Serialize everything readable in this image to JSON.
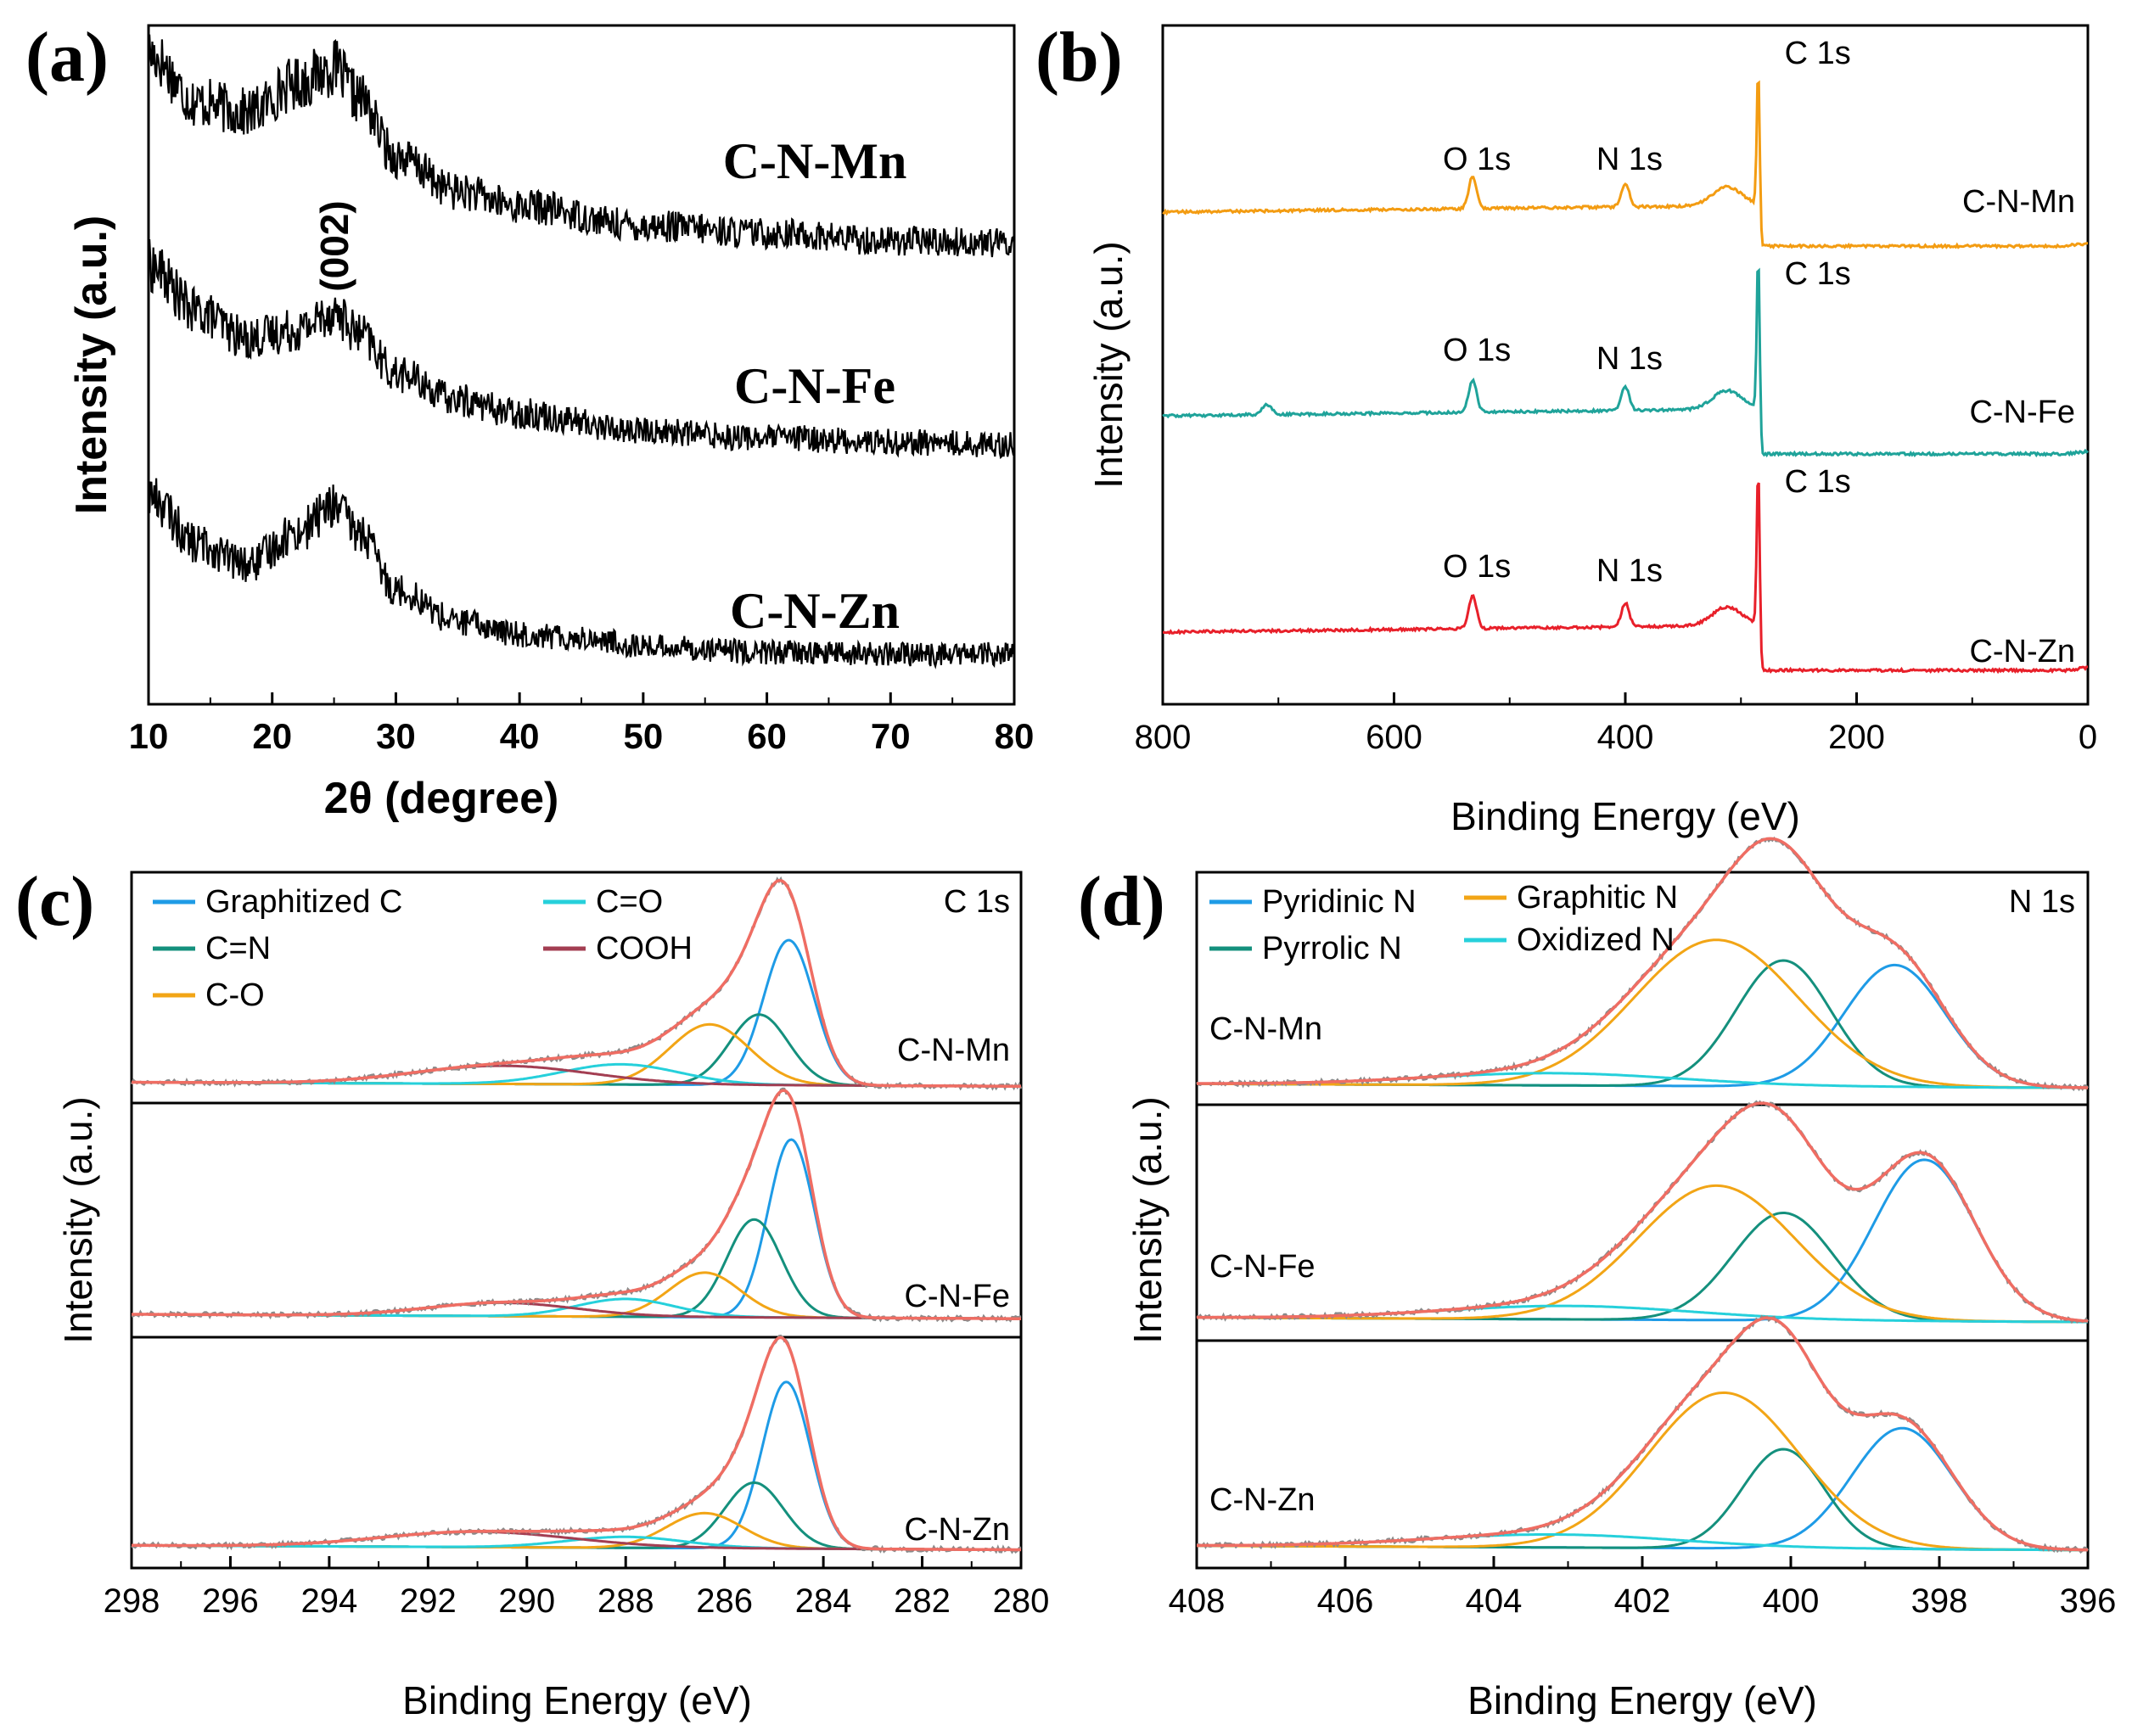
{
  "chart_data": [
    {
      "type": "line",
      "panel": "(a)",
      "xlabel": "2θ (degree)",
      "ylabel": "Intensity (a.u.)",
      "xlim": [
        10,
        80
      ],
      "xticks": [
        "10",
        "20",
        "30",
        "40",
        "50",
        "60",
        "70",
        "80"
      ],
      "annotation": "(002)",
      "series": [
        {
          "name": "C-N-Mn",
          "color": "#000000",
          "x": [
            10,
            14,
            18,
            22,
            25,
            27,
            30,
            35,
            40,
            50,
            60,
            70,
            80
          ],
          "y": [
            0.92,
            0.72,
            0.68,
            0.8,
            0.86,
            0.74,
            0.5,
            0.36,
            0.3,
            0.22,
            0.19,
            0.16,
            0.15
          ]
        },
        {
          "name": "C-N-Fe",
          "color": "#000000",
          "x": [
            10,
            14,
            18,
            22,
            25,
            27,
            30,
            35,
            40,
            50,
            60,
            70,
            80
          ],
          "y": [
            0.95,
            0.74,
            0.62,
            0.66,
            0.74,
            0.64,
            0.46,
            0.34,
            0.28,
            0.2,
            0.17,
            0.15,
            0.14
          ]
        },
        {
          "name": "C-N-Zn",
          "color": "#000000",
          "x": [
            10,
            14,
            18,
            22,
            25,
            27,
            30,
            35,
            40,
            45,
            50,
            60,
            70,
            80
          ],
          "y": [
            0.9,
            0.66,
            0.56,
            0.72,
            0.85,
            0.72,
            0.44,
            0.28,
            0.22,
            0.2,
            0.16,
            0.13,
            0.12,
            0.12
          ]
        }
      ]
    },
    {
      "type": "line",
      "panel": "(b)",
      "xlabel": "Binding Energy (eV)",
      "ylabel": "Intensity (a.u.)",
      "xlim": [
        800,
        0
      ],
      "xticks": [
        "800",
        "600",
        "400",
        "200",
        "0"
      ],
      "peak_labels": [
        "O 1s",
        "N 1s",
        "C 1s"
      ],
      "peak_positions_eV": [
        532,
        400,
        285
      ],
      "series": [
        {
          "name": "C-N-Mn",
          "color": "#F39C12"
        },
        {
          "name": "C-N-Fe",
          "color": "#1FA39A"
        },
        {
          "name": "C-N-Zn",
          "color": "#E8202A"
        }
      ]
    },
    {
      "type": "line",
      "panel": "(c)",
      "title": "C 1s",
      "xlabel": "Binding Energy (eV)",
      "ylabel": "Intensity (a.u.)",
      "xlim": [
        298,
        280
      ],
      "xticks": [
        "298",
        "296",
        "294",
        "292",
        "290",
        "288",
        "286",
        "284",
        "282",
        "280"
      ],
      "legend": [
        {
          "name": "Graphitized C",
          "color": "#1E9BE6"
        },
        {
          "name": "C=N",
          "color": "#14907D"
        },
        {
          "name": "C-O",
          "color": "#F2A516"
        },
        {
          "name": "C=O",
          "color": "#26D0DB"
        },
        {
          "name": "COOH",
          "color": "#A33E52"
        }
      ],
      "envelope_color": "#EF6D63",
      "samples": [
        "C-N-Mn",
        "C-N-Fe",
        "C-N-Zn"
      ],
      "components": {
        "C-N-Mn": [
          {
            "name": "Graphitized C",
            "center": 284.7,
            "fwhm": 1.2,
            "height": 0.72
          },
          {
            "name": "C=N",
            "center": 285.3,
            "fwhm": 1.4,
            "height": 0.35
          },
          {
            "name": "C-O",
            "center": 286.3,
            "fwhm": 1.9,
            "height": 0.3
          },
          {
            "name": "C=O",
            "center": 288.1,
            "fwhm": 2.8,
            "height": 0.1
          },
          {
            "name": "COOH",
            "center": 290.5,
            "fwhm": 4.2,
            "height": 0.09
          }
        ],
        "C-N-Fe": [
          {
            "name": "Graphitized C",
            "center": 284.65,
            "fwhm": 1.1,
            "height": 0.8
          },
          {
            "name": "C=N",
            "center": 285.4,
            "fwhm": 1.3,
            "height": 0.44
          },
          {
            "name": "C-O",
            "center": 286.4,
            "fwhm": 1.7,
            "height": 0.2
          },
          {
            "name": "C=O",
            "center": 288.0,
            "fwhm": 2.3,
            "height": 0.08
          },
          {
            "name": "COOH",
            "center": 290.5,
            "fwhm": 3.5,
            "height": 0.06
          }
        ],
        "C-N-Zn": [
          {
            "name": "Graphitized C",
            "center": 284.75,
            "fwhm": 1.15,
            "height": 0.76
          },
          {
            "name": "C=N",
            "center": 285.4,
            "fwhm": 1.4,
            "height": 0.3
          },
          {
            "name": "C-O",
            "center": 286.4,
            "fwhm": 1.8,
            "height": 0.16
          },
          {
            "name": "C=O",
            "center": 288.0,
            "fwhm": 2.8,
            "height": 0.05
          },
          {
            "name": "COOH",
            "center": 291.0,
            "fwhm": 4.5,
            "height": 0.07
          }
        ]
      }
    },
    {
      "type": "line",
      "panel": "(d)",
      "title": "N 1s",
      "xlabel": "Binding Energy (eV)",
      "ylabel": "Intensity (a.u.)",
      "xlim": [
        408,
        396
      ],
      "xticks": [
        "408",
        "406",
        "404",
        "402",
        "400",
        "398",
        "396"
      ],
      "legend": [
        {
          "name": "Pyridinic N",
          "color": "#1E9BE6"
        },
        {
          "name": "Pyrrolic N",
          "color": "#14907D"
        },
        {
          "name": "Graphitic N",
          "color": "#F2A516"
        },
        {
          "name": "Oxidized N",
          "color": "#26D0DB"
        }
      ],
      "envelope_color": "#EF6D63",
      "samples": [
        "C-N-Mn",
        "C-N-Fe",
        "C-N-Zn"
      ],
      "components": {
        "C-N-Mn": [
          {
            "name": "Pyridinic N",
            "center": 398.6,
            "fwhm": 1.6,
            "height": 0.6
          },
          {
            "name": "Pyrrolic N",
            "center": 400.1,
            "fwhm": 1.5,
            "height": 0.62
          },
          {
            "name": "Graphitic N",
            "center": 401.0,
            "fwhm": 2.6,
            "height": 0.72
          },
          {
            "name": "Oxidized N",
            "center": 403.2,
            "fwhm": 4.0,
            "height": 0.06
          }
        ],
        "C-N-Fe": [
          {
            "name": "Pyridinic N",
            "center": 398.2,
            "fwhm": 1.6,
            "height": 0.72
          },
          {
            "name": "Pyrrolic N",
            "center": 400.1,
            "fwhm": 1.6,
            "height": 0.48
          },
          {
            "name": "Graphitic N",
            "center": 401.0,
            "fwhm": 2.5,
            "height": 0.6
          },
          {
            "name": "Oxidized N",
            "center": 403.0,
            "fwhm": 4.0,
            "height": 0.06
          }
        ],
        "C-N-Zn": [
          {
            "name": "Pyridinic N",
            "center": 398.5,
            "fwhm": 1.6,
            "height": 0.56
          },
          {
            "name": "Pyrrolic N",
            "center": 400.1,
            "fwhm": 1.3,
            "height": 0.46
          },
          {
            "name": "Graphitic N",
            "center": 400.9,
            "fwhm": 2.4,
            "height": 0.72
          },
          {
            "name": "Oxidized N",
            "center": 403.2,
            "fwhm": 4.0,
            "height": 0.06
          }
        ]
      }
    }
  ]
}
